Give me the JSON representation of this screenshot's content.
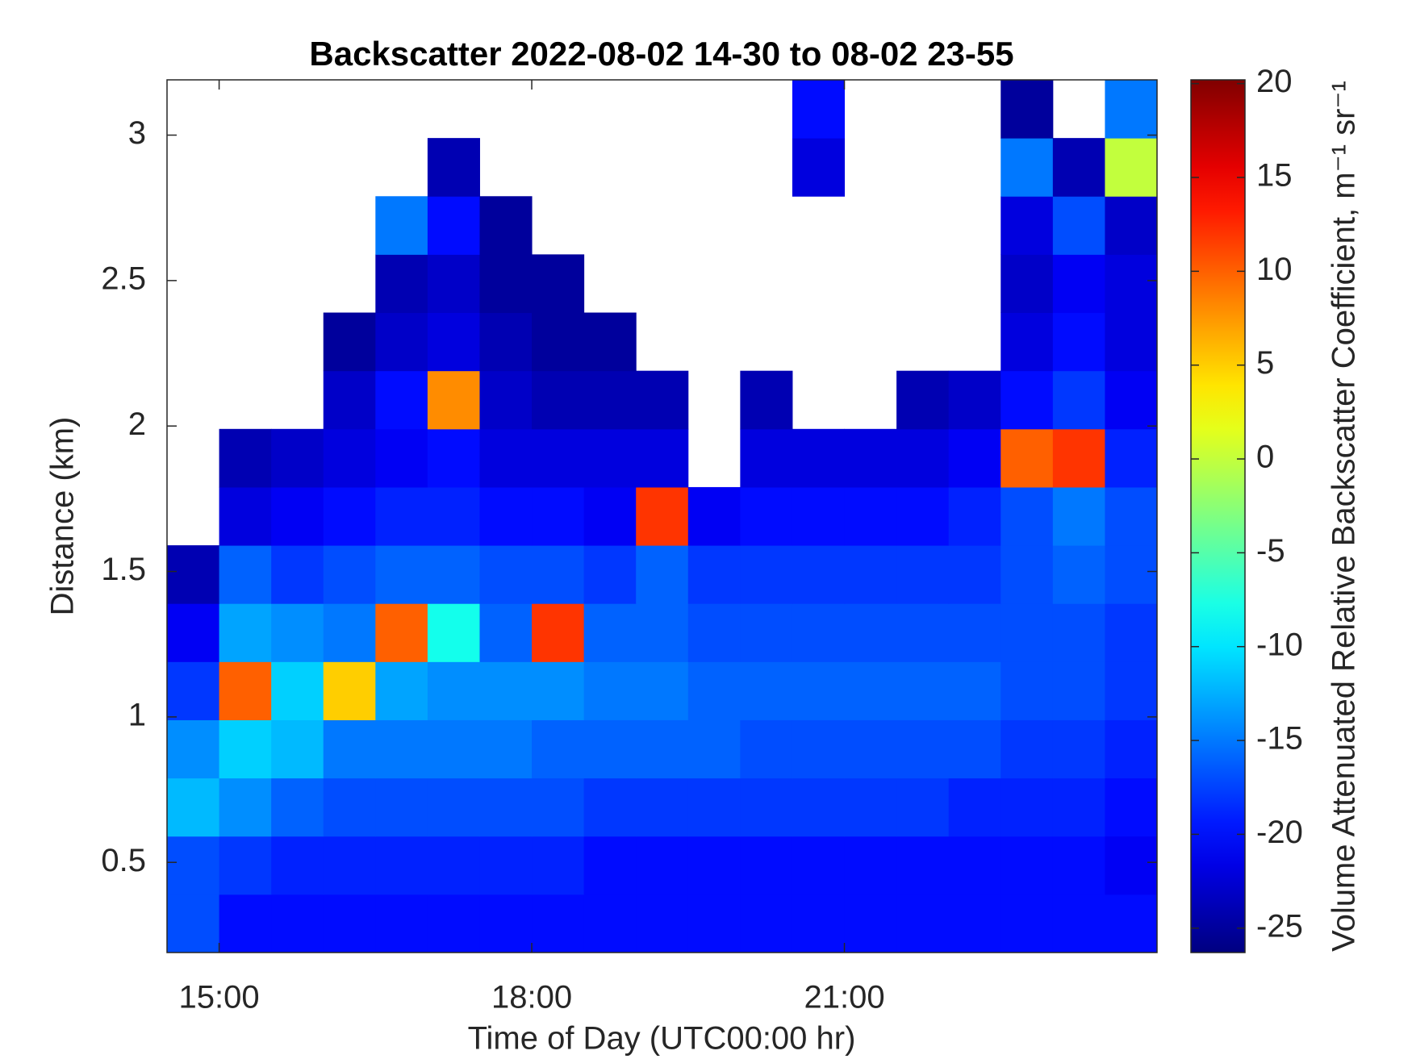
{
  "chart_data": {
    "type": "heatmap",
    "title": "Backscatter 2022-08-02 14-30 to 08-02 23-55",
    "xlabel": "Time of Day (UTC00:00 hr)",
    "ylabel": "Distance (km)",
    "colorbar_label": "Volume Attenuated Relative Backscatter Coefficient, m⁻¹ sr⁻¹",
    "colormap": "jet",
    "x": [
      14.75,
      15.25,
      15.75,
      16.25,
      16.75,
      17.25,
      17.75,
      18.25,
      18.75,
      19.25,
      19.75,
      20.25,
      20.75,
      21.25,
      21.75,
      22.25,
      22.75,
      23.25,
      23.75
    ],
    "y": [
      0.29,
      0.49,
      0.69,
      0.89,
      1.09,
      1.29,
      1.49,
      1.69,
      1.89,
      2.09,
      2.29,
      2.49,
      2.69,
      2.89,
      3.09
    ],
    "z": [
      [
        -17,
        -20,
        -20,
        -20,
        -20,
        -20,
        -20,
        -20,
        -20,
        -20,
        -20,
        -20,
        -20,
        -20,
        -20,
        -20,
        -20,
        -20,
        -20
      ],
      [
        -17,
        -18,
        -19,
        -19,
        -19,
        -19,
        -19,
        -19,
        -20,
        -20,
        -20,
        -20,
        -20,
        -20,
        -20,
        -20,
        -20,
        -20,
        -21
      ],
      [
        -12,
        -14,
        -16,
        -17,
        -17,
        -17,
        -17,
        -17,
        -18,
        -18,
        -18,
        -18,
        -18,
        -18,
        -18,
        -19,
        -19,
        -19,
        -20
      ],
      [
        -14,
        -11,
        -12,
        -15,
        -15,
        -15,
        -15,
        -16,
        -16,
        -16,
        -16,
        -17,
        -17,
        -17,
        -17,
        -17,
        -18,
        -18,
        -19
      ],
      [
        -18,
        10,
        -11,
        5,
        -13,
        -14,
        -14,
        -14,
        -15,
        -15,
        -16,
        -16,
        -16,
        -16,
        -16,
        -16,
        -17,
        -17,
        -18
      ],
      [
        -21,
        -13,
        -14,
        -15,
        10,
        -8,
        -16,
        12,
        -16,
        -16,
        -17,
        -17,
        -17,
        -17,
        -17,
        -17,
        -17,
        -17,
        -18
      ],
      [
        -24,
        -16,
        -18,
        -17,
        -16,
        -16,
        -17,
        -17,
        -18,
        -16,
        -18,
        -18,
        -18,
        -18,
        -18,
        -18,
        -17,
        -16,
        -17
      ],
      [
        null,
        -22,
        -21,
        -20,
        -19,
        -19,
        -20,
        -20,
        -21,
        12,
        -21,
        -20,
        -20,
        -20,
        -20,
        -19,
        -17,
        -15,
        -17
      ],
      [
        null,
        -24,
        -23,
        -22,
        -21,
        -20,
        -22,
        -22,
        -22,
        -22,
        null,
        -22,
        -22,
        -22,
        -22,
        -21,
        10,
        12,
        -19
      ],
      [
        null,
        null,
        null,
        -23,
        -20,
        8,
        -23,
        -24,
        -24,
        -24,
        null,
        -24,
        null,
        null,
        -24,
        -23,
        -20,
        -18,
        -21
      ],
      [
        null,
        null,
        null,
        -25,
        -23,
        -22,
        -24,
        -25,
        -25,
        null,
        null,
        null,
        null,
        null,
        null,
        null,
        -22,
        -20,
        -22
      ],
      [
        null,
        null,
        null,
        null,
        -24,
        -23,
        -25,
        -25,
        null,
        null,
        null,
        null,
        null,
        null,
        null,
        null,
        -23,
        -21,
        -22
      ],
      [
        null,
        null,
        null,
        null,
        -15,
        -20,
        -25,
        null,
        null,
        null,
        null,
        null,
        null,
        null,
        null,
        null,
        -22,
        -17,
        -23
      ],
      [
        null,
        null,
        null,
        null,
        null,
        -24,
        null,
        null,
        null,
        null,
        null,
        null,
        -22,
        null,
        null,
        null,
        -15,
        -24,
        0
      ],
      [
        null,
        null,
        null,
        null,
        null,
        null,
        null,
        null,
        null,
        null,
        null,
        null,
        -20,
        null,
        null,
        null,
        -25,
        null,
        -15
      ]
    ],
    "xlim": [
      14.5,
      24
    ],
    "ylim": [
      0.19,
      3.19
    ],
    "xticks": [
      {
        "value": 15,
        "label": "15:00"
      },
      {
        "value": 18,
        "label": "18:00"
      },
      {
        "value": 21,
        "label": "21:00"
      }
    ],
    "yticks": [
      0.5,
      1,
      1.5,
      2,
      2.5,
      3
    ],
    "clim": [
      -26.3,
      20.2
    ],
    "cticks": [
      -25,
      -20,
      -15,
      -10,
      -5,
      0,
      5,
      10,
      15,
      20
    ]
  }
}
